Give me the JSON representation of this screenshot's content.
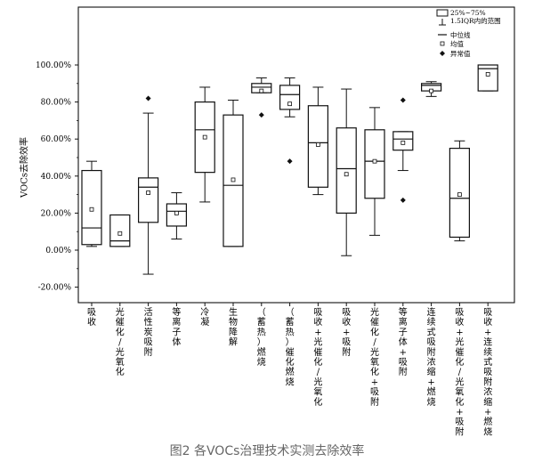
{
  "figure_caption": "图2 各VOCs治理技术实测去除效率",
  "chart_data": {
    "type": "box",
    "ylabel": "VOCs去除效率",
    "ylim": [
      -25,
      105
    ],
    "yticks": [
      -20,
      0,
      20,
      40,
      60,
      80,
      100
    ],
    "ytick_labels": [
      "-20.00%",
      "0.00%",
      "20.00%",
      "40.00%",
      "60.00%",
      "80.00%",
      "100.00%"
    ],
    "legend": {
      "position": "top-right",
      "box": "25%~75%",
      "whisker": "1.5IQR内的范围",
      "median": "中位线",
      "mean": "均值",
      "outlier": "异常值"
    },
    "categories": [
      "吸收",
      "光催化/光氧化",
      "活性炭吸附",
      "等离子体",
      "冷凝",
      "生物降解",
      "（蓄热）燃烧",
      "（蓄热）催化燃烧",
      "吸收+光催化/光氧化",
      "吸收+吸附",
      "光催化/光氧化+吸附",
      "等离子体+吸附",
      "连续式吸附浓缩+燃烧",
      "吸收+光催化/光氧化+吸附",
      "吸收+连续式吸附浓缩+燃烧"
    ],
    "boxes": [
      {
        "whisker_low": 2,
        "q1": 3,
        "median": 12,
        "q3": 43,
        "whisker_high": 48,
        "mean": 22,
        "outliers": []
      },
      {
        "whisker_low": 2,
        "q1": 2,
        "median": 5,
        "q3": 19,
        "whisker_high": 19,
        "mean": 9,
        "outliers": []
      },
      {
        "whisker_low": -13,
        "q1": 15,
        "median": 34,
        "q3": 39,
        "whisker_high": 74,
        "mean": 31,
        "outliers": [
          82
        ]
      },
      {
        "whisker_low": 6,
        "q1": 13,
        "median": 21,
        "q3": 25,
        "whisker_high": 31,
        "mean": 20,
        "outliers": []
      },
      {
        "whisker_low": 26,
        "q1": 42,
        "median": 65,
        "q3": 80,
        "whisker_high": 88,
        "mean": 61,
        "outliers": []
      },
      {
        "whisker_low": 2,
        "q1": 2,
        "median": 35,
        "q3": 73,
        "whisker_high": 81,
        "mean": 38,
        "outliers": []
      },
      {
        "whisker_low": 85,
        "q1": 85,
        "median": 88,
        "q3": 90,
        "whisker_high": 93,
        "mean": 86,
        "outliers": [
          73
        ]
      },
      {
        "whisker_low": 72,
        "q1": 76,
        "median": 84,
        "q3": 89,
        "whisker_high": 93,
        "mean": 79,
        "outliers": [
          48
        ]
      },
      {
        "whisker_low": 30,
        "q1": 34,
        "median": 58,
        "q3": 78,
        "whisker_high": 88,
        "mean": 57,
        "outliers": []
      },
      {
        "whisker_low": -3,
        "q1": 20,
        "median": 44,
        "q3": 66,
        "whisker_high": 87,
        "mean": 41,
        "outliers": []
      },
      {
        "whisker_low": 8,
        "q1": 28,
        "median": 48,
        "q3": 65,
        "whisker_high": 77,
        "mean": 48,
        "outliers": []
      },
      {
        "whisker_low": 43,
        "q1": 54,
        "median": 60,
        "q3": 64,
        "whisker_high": 64,
        "mean": 58,
        "outliers": [
          81,
          27
        ]
      },
      {
        "whisker_low": 83,
        "q1": 86,
        "median": 89,
        "q3": 90,
        "whisker_high": 91,
        "mean": 86,
        "outliers": []
      },
      {
        "whisker_low": 5,
        "q1": 7,
        "median": 28,
        "q3": 55,
        "whisker_high": 59,
        "mean": 30,
        "outliers": []
      },
      {
        "whisker_low": 86,
        "q1": 86,
        "median": 98,
        "q3": 100,
        "whisker_high": 100,
        "mean": 95,
        "outliers": []
      }
    ]
  }
}
